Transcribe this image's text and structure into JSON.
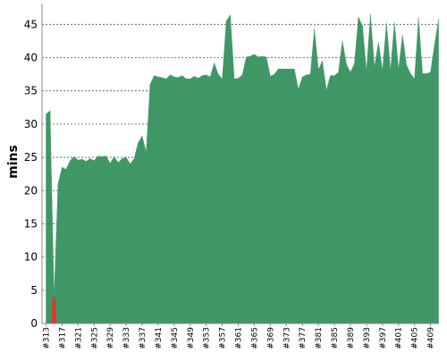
{
  "chart_data": {
    "type": "area",
    "title": "",
    "xlabel": "",
    "ylabel": "mins",
    "ylim": [
      0,
      48
    ],
    "y_ticks": [
      0,
      5,
      10,
      15,
      20,
      25,
      30,
      35,
      40,
      45
    ],
    "grid": "horizontal-dashed",
    "legend": "none",
    "colors": {
      "success": "#3f9766",
      "failure": "#dc3a2e",
      "grid": "#555555",
      "axis": "#888888"
    },
    "x": [
      "#313",
      "#314",
      "#315",
      "#316",
      "#317",
      "#318",
      "#319",
      "#320",
      "#321",
      "#322",
      "#323",
      "#324",
      "#325",
      "#326",
      "#327",
      "#328",
      "#329",
      "#330",
      "#331",
      "#332",
      "#333",
      "#334",
      "#335",
      "#336",
      "#337",
      "#338",
      "#339",
      "#340",
      "#341",
      "#342",
      "#343",
      "#344",
      "#345",
      "#346",
      "#347",
      "#348",
      "#349",
      "#350",
      "#351",
      "#352",
      "#353",
      "#354",
      "#355",
      "#356",
      "#357",
      "#358",
      "#359",
      "#360",
      "#361",
      "#362",
      "#363",
      "#364",
      "#365",
      "#366",
      "#367",
      "#368",
      "#369",
      "#370",
      "#371",
      "#372",
      "#373",
      "#374",
      "#375",
      "#376",
      "#377",
      "#378",
      "#379",
      "#380",
      "#381",
      "#382",
      "#383",
      "#384",
      "#385",
      "#386",
      "#387",
      "#388",
      "#389",
      "#390",
      "#391",
      "#392",
      "#393",
      "#394",
      "#395",
      "#396",
      "#397",
      "#398",
      "#399",
      "#400",
      "#401",
      "#402",
      "#403",
      "#404",
      "#405",
      "#406",
      "#407",
      "#408",
      "#409",
      "#410",
      "#411"
    ],
    "x_tick_labels": [
      "#313",
      "#317",
      "#321",
      "#325",
      "#329",
      "#333",
      "#337",
      "#341",
      "#345",
      "#349",
      "#353",
      "#357",
      "#361",
      "#365",
      "#369",
      "#373",
      "#377",
      "#381",
      "#385",
      "#389",
      "#393",
      "#397",
      "#401",
      "#405",
      "#409"
    ],
    "series": [
      {
        "values": [
          31.5,
          32,
          4,
          21,
          23.5,
          23.2,
          24.5,
          25.1,
          24.6,
          24.7,
          24.4,
          24.8,
          24.5,
          25.2,
          25.1,
          25.2,
          24.1,
          25.1,
          24.2,
          24.8,
          25,
          24,
          24.8,
          27.2,
          28.2,
          25.8,
          36,
          37.3,
          37.1,
          37,
          36.8,
          37.4,
          37.1,
          37,
          37.3,
          36.8,
          36.8,
          37.2,
          36.9,
          37.3,
          37.4,
          37.1,
          39.2,
          37.5,
          36.8,
          45.5,
          46.4,
          36.8,
          36.9,
          37.4,
          40.1,
          40.2,
          40.5,
          40.1,
          40.2,
          40.1,
          37.2,
          37.5,
          38.3,
          38.3,
          38.3,
          38.3,
          38.3,
          35.2,
          37.1,
          37.4,
          37.5,
          44.3,
          38.2,
          39.5,
          35.1,
          37.3,
          37.3,
          37.8,
          42.5,
          39,
          37.8,
          39.1,
          46.1,
          44.8,
          38,
          46.5,
          38.6,
          42.3,
          38.1,
          45.2,
          38.1,
          45.3,
          38.2,
          43.4,
          38.9,
          37.6,
          36.8,
          46,
          37.6,
          37.6,
          37.8,
          41.9,
          45.8
        ],
        "failed": [
          false,
          false,
          true,
          false,
          false,
          false,
          false,
          false,
          false,
          false,
          false,
          false,
          false,
          false,
          false,
          false,
          false,
          false,
          false,
          false,
          false,
          false,
          false,
          false,
          false,
          false,
          false,
          false,
          false,
          false,
          false,
          false,
          false,
          false,
          false,
          false,
          false,
          false,
          false,
          false,
          false,
          false,
          false,
          false,
          false,
          false,
          false,
          false,
          false,
          false,
          false,
          false,
          false,
          false,
          false,
          false,
          false,
          false,
          false,
          false,
          false,
          false,
          false,
          false,
          false,
          false,
          false,
          false,
          false,
          false,
          false,
          false,
          false,
          false,
          false,
          false,
          false,
          false,
          false,
          false,
          false,
          false,
          false,
          false,
          false,
          false,
          false,
          false,
          false,
          false,
          false,
          false,
          false,
          false,
          false,
          false,
          false,
          false,
          false
        ]
      }
    ]
  }
}
